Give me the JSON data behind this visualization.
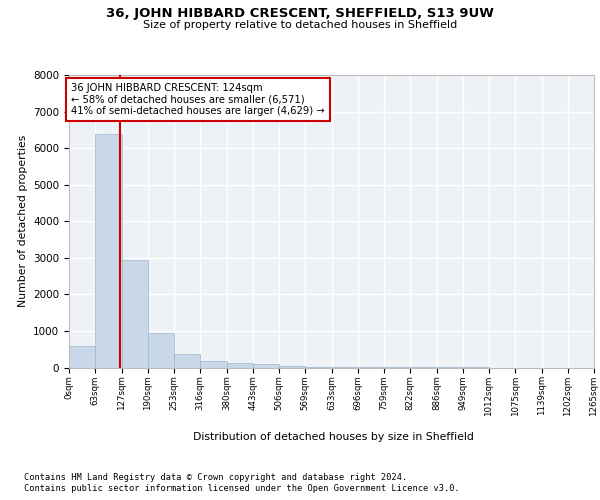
{
  "title": "36, JOHN HIBBARD CRESCENT, SHEFFIELD, S13 9UW",
  "subtitle": "Size of property relative to detached houses in Sheffield",
  "xlabel": "Distribution of detached houses by size in Sheffield",
  "ylabel": "Number of detached properties",
  "bin_edges": [
    0,
    63,
    127,
    190,
    253,
    316,
    380,
    443,
    506,
    569,
    633,
    696,
    759,
    822,
    886,
    949,
    1012,
    1075,
    1139,
    1202,
    1265
  ],
  "bar_heights": [
    580,
    6400,
    2950,
    950,
    380,
    175,
    120,
    90,
    50,
    5,
    3,
    2,
    2,
    1,
    1,
    1,
    0,
    0,
    0,
    0
  ],
  "bar_color": "#c8d8e8",
  "bar_edge_color": "#a0b8cc",
  "property_line_x": 124,
  "property_line_color": "#cc0000",
  "annotation_text": "36 JOHN HIBBARD CRESCENT: 124sqm\n← 58% of detached houses are smaller (6,571)\n41% of semi-detached houses are larger (4,629) →",
  "annotation_box_color": "white",
  "annotation_box_edge_color": "#cc0000",
  "ylim": [
    0,
    8000
  ],
  "yticks": [
    0,
    1000,
    2000,
    3000,
    4000,
    5000,
    6000,
    7000,
    8000
  ],
  "background_color": "#eef2f7",
  "grid_color": "white",
  "footer_line1": "Contains HM Land Registry data © Crown copyright and database right 2024.",
  "footer_line2": "Contains public sector information licensed under the Open Government Licence v3.0."
}
